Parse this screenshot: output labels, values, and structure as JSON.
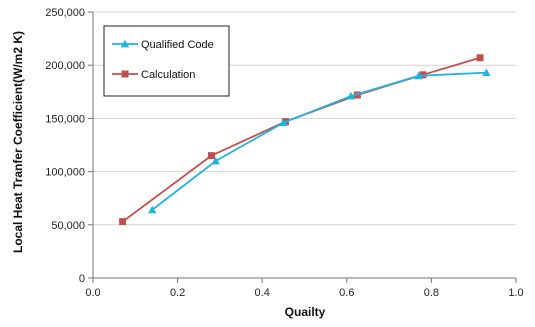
{
  "chart_data": {
    "type": "line",
    "title": "",
    "xlabel": "Quailty",
    "ylabel": "Local Heat  Tranfer Coefficient(W/m2 K)",
    "xlim": [
      0.0,
      1.0
    ],
    "ylim": [
      0,
      250000
    ],
    "x_ticks": [
      {
        "value": 0.0,
        "label": "0.0"
      },
      {
        "value": 0.2,
        "label": "0.2"
      },
      {
        "value": 0.4,
        "label": "0.4"
      },
      {
        "value": 0.6,
        "label": "0.6"
      },
      {
        "value": 0.8,
        "label": "0.8"
      },
      {
        "value": 1.0,
        "label": "1.0"
      }
    ],
    "y_ticks": [
      {
        "value": 0,
        "label": "0"
      },
      {
        "value": 50000,
        "label": "50,000"
      },
      {
        "value": 100000,
        "label": "100,000"
      },
      {
        "value": 150000,
        "label": "150,000"
      },
      {
        "value": 200000,
        "label": "200,000"
      },
      {
        "value": 250000,
        "label": "250,000"
      }
    ],
    "grid": "horizontal",
    "legend_position": "top-left",
    "series": [
      {
        "name": "Qualified Code",
        "color": "#1fb5e0",
        "marker": "triangle",
        "x": [
          0.14,
          0.29,
          0.45,
          0.61,
          0.77,
          0.93
        ],
        "y": [
          64000,
          110000,
          146000,
          171000,
          190000,
          193000
        ]
      },
      {
        "name": "Calculation",
        "color": "#c0504d",
        "marker": "square",
        "x": [
          0.07,
          0.28,
          0.455,
          0.625,
          0.78,
          0.915
        ],
        "y": [
          53000,
          115000,
          147000,
          172000,
          191000,
          207000
        ]
      }
    ]
  }
}
